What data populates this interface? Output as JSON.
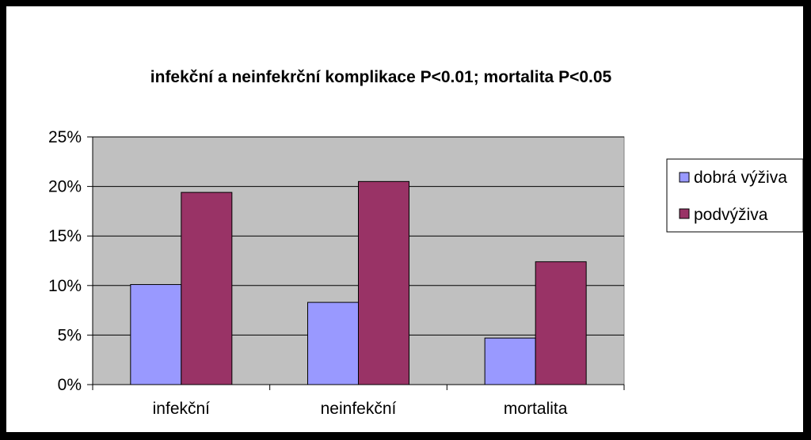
{
  "chart_data": {
    "type": "bar",
    "title": "infekční a neinfekrční komplikace P<0.01; mortalita P<0.05",
    "categories": [
      "infekční",
      "neinfekční",
      "mortalita"
    ],
    "series": [
      {
        "name": "dobrá výživa",
        "color": "#9999ff",
        "values": [
          0.101,
          0.083,
          0.047
        ]
      },
      {
        "name": "podvýživa",
        "color": "#993366",
        "values": [
          0.194,
          0.205,
          0.124
        ]
      }
    ],
    "ylim": [
      0,
      0.25
    ],
    "yticks": [
      0,
      0.05,
      0.1,
      0.15,
      0.2,
      0.25
    ],
    "ytick_labels": [
      "0%",
      "5%",
      "10%",
      "15%",
      "20%",
      "25%"
    ],
    "xlabel": "",
    "ylabel": "",
    "grid": true,
    "legend_position": "right",
    "plot_background": "#c0c0c0"
  }
}
